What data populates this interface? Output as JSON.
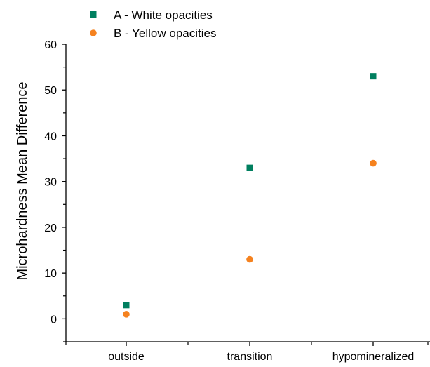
{
  "chart_data": {
    "type": "scatter",
    "title": "",
    "xlabel": "",
    "ylabel": "Microhardness Mean Difference",
    "categories": [
      "outside",
      "transition",
      "hypomineralized"
    ],
    "ylim": [
      -5,
      60
    ],
    "yticks": [
      0,
      10,
      20,
      30,
      40,
      50,
      60
    ],
    "grid": false,
    "legend_position": "top-left",
    "series": [
      {
        "name": "A - White opacities",
        "marker": "square",
        "color": "#007F5F",
        "values": [
          3,
          33,
          53
        ]
      },
      {
        "name": "B - Yellow opacities",
        "marker": "circle",
        "color": "#F5821F",
        "values": [
          1,
          13,
          34
        ]
      }
    ]
  }
}
